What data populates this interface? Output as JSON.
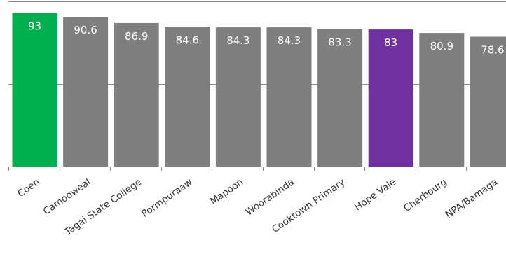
{
  "chart_data": {
    "type": "bar",
    "categories": [
      "Coen",
      "Camooweal",
      "Tagai State College",
      "Pormpuraaw",
      "Mapoon",
      "Woorabinda",
      "Cooktown Primary",
      "Hope Vale",
      "Cherbourg",
      "NPA/Bamaga"
    ],
    "values": [
      93,
      90.6,
      86.9,
      84.6,
      84.3,
      84.3,
      83.3,
      83,
      80.9,
      78.6
    ],
    "value_labels": [
      "93",
      "90.6",
      "86.9",
      "84.6",
      "84.3",
      "84.3",
      "83.3",
      "83",
      "80.9",
      "78.6"
    ],
    "colors": [
      "#00b050",
      "#7f7f7f",
      "#7f7f7f",
      "#7f7f7f",
      "#7f7f7f",
      "#7f7f7f",
      "#7f7f7f",
      "#7030a0",
      "#7f7f7f",
      "#7f7f7f"
    ],
    "label_color": "#ffffff",
    "axis_color": "#888888",
    "ylim": [
      0,
      100
    ],
    "gridlines": [
      50,
      100
    ],
    "grid": true,
    "title": "",
    "xlabel": "",
    "ylabel": "",
    "legend": false
  }
}
